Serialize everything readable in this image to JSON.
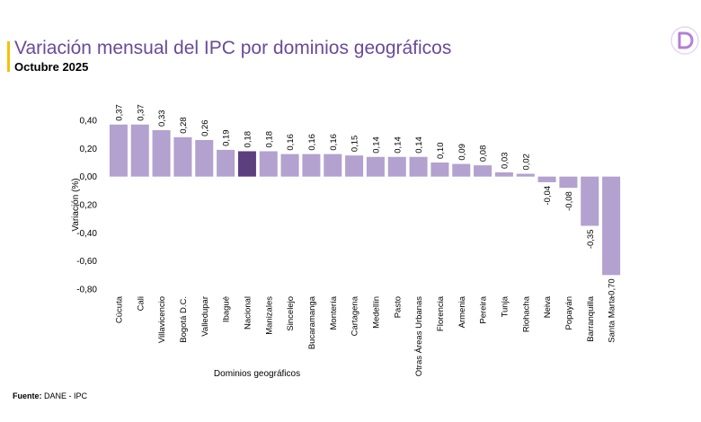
{
  "header": {
    "title": "Variación mensual del IPC por dominios geográficos",
    "subtitle": "Octubre 2025"
  },
  "logo": {
    "icon": "d-logo-icon",
    "color": "#b37fd9"
  },
  "source": {
    "label": "Fuente:",
    "text": " DANE - IPC"
  },
  "colors": {
    "bar": "#b3a1cf",
    "highlight": "#5b3f7f",
    "accent": "#f2c200",
    "title": "#6a4a9a"
  },
  "chart_data": {
    "type": "bar",
    "xlabel": "Dominios geográficos",
    "ylabel": "Variación (%)",
    "ylim": [
      -0.8,
      0.4
    ],
    "yticks": [
      "0,40",
      "0,20",
      "0,00",
      "-0,20",
      "-0,40",
      "-0,60",
      "-0,80"
    ],
    "ytick_values": [
      0.4,
      0.2,
      0.0,
      -0.2,
      -0.4,
      -0.6,
      -0.8
    ],
    "highlight": "Nacional",
    "categories": [
      "Cúcuta",
      "Cali",
      "Villavicencio",
      "Bogotá D.C.",
      "Valledupar",
      "Ibagué",
      "Nacional",
      "Manizales",
      "Sincelejo",
      "Bucaramanga",
      "Montería",
      "Cartagena",
      "Medellín",
      "Pasto",
      "Otras Áreas Urbanas",
      "Florencia",
      "Armenia",
      "Pereira",
      "Tunja",
      "Riohacha",
      "Neiva",
      "Popayán",
      "Barranquilla",
      "Santa Marta"
    ],
    "values": [
      0.37,
      0.37,
      0.33,
      0.28,
      0.26,
      0.19,
      0.18,
      0.18,
      0.16,
      0.16,
      0.16,
      0.15,
      0.14,
      0.14,
      0.14,
      0.1,
      0.09,
      0.08,
      0.03,
      0.02,
      -0.04,
      -0.08,
      -0.35,
      -0.7
    ],
    "labels": [
      "0,37",
      "0,37",
      "0,33",
      "0,28",
      "0,26",
      "0,19",
      "0,18",
      "0,18",
      "0,16",
      "0,16",
      "0,16",
      "0,15",
      "0,14",
      "0,14",
      "0,14",
      "0,10",
      "0,09",
      "0,08",
      "0,03",
      "0,02",
      "-0,04",
      "-0,08",
      "-0,35",
      "-0,70"
    ]
  }
}
